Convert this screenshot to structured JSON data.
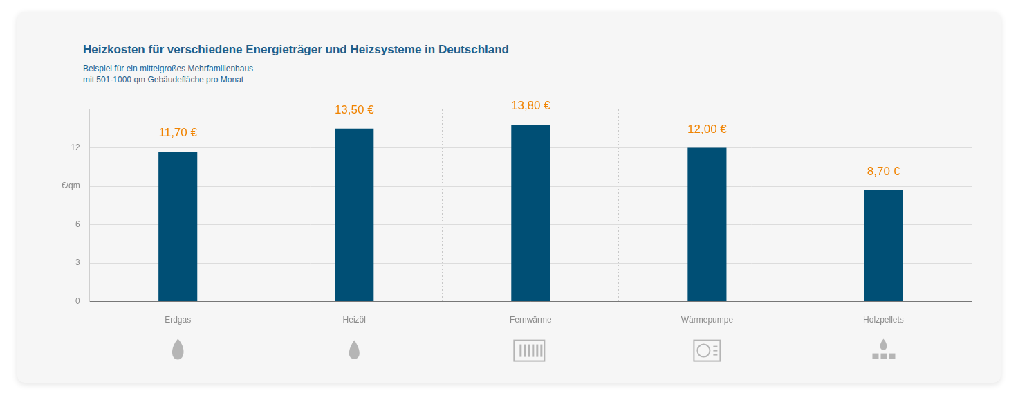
{
  "chart_data": {
    "type": "bar",
    "title": "Heizkosten für verschiedene Energieträger und Heizsysteme in Deutschland",
    "subtitle": [
      "Beispiel für ein mittelgroßes Mehrfamilienhaus",
      "mit 501-1000 qm Gebäudefläche pro Monat"
    ],
    "categories": [
      "Erdgas",
      "Heizöl",
      "Fernwärme",
      "Wärmepumpe",
      "Holzpellets"
    ],
    "values": [
      11.7,
      13.5,
      13.8,
      12.0,
      8.7
    ],
    "value_labels": [
      "11,70 €",
      "13,50 €",
      "13,80 €",
      "12,00 €",
      "8,70 €"
    ],
    "data_labels": true,
    "color": "#004f75",
    "ylim": [
      0,
      15
    ],
    "yticks": [
      0,
      3,
      6,
      {
        "value": 9,
        "label": "€/qm"
      },
      12
    ],
    "grid": true
  }
}
